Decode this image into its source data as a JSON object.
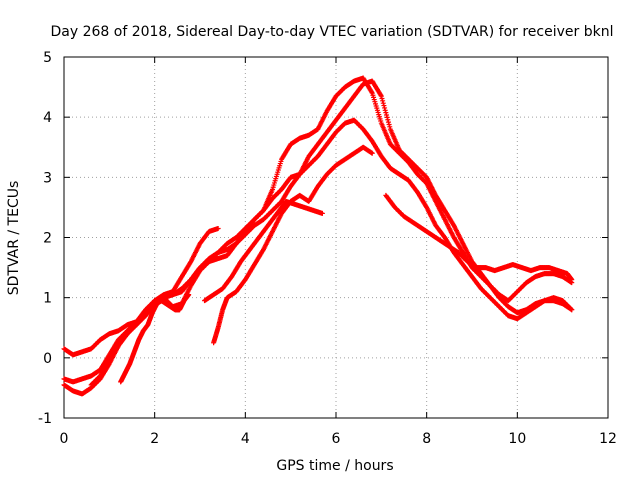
{
  "chart_data": {
    "type": "scatter",
    "title": "Day 268 of 2018, Sidereal Day-to-day VTEC variation (SDTVAR) for receiver bknl",
    "xlabel": "GPS time / hours",
    "ylabel": "SDTVAR / TECUs",
    "xlim": [
      0,
      12
    ],
    "ylim": [
      -1,
      5
    ],
    "xticks": [
      "0",
      "2",
      "4",
      "6",
      "8",
      "10",
      "12"
    ],
    "yticks": [
      "-1",
      "0",
      "1",
      "2",
      "3",
      "4",
      "5"
    ],
    "grid": true,
    "marker": "+",
    "color": "#ff0000",
    "series": [
      {
        "name": "trace-1",
        "x": [
          0.0,
          0.2,
          0.4,
          0.6,
          0.8,
          1.0,
          1.2,
          1.4,
          1.6,
          1.8,
          2.0,
          2.2,
          2.4,
          2.6,
          2.8,
          3.0,
          3.2,
          3.4
        ],
        "y": [
          0.15,
          0.05,
          0.1,
          0.15,
          0.3,
          0.4,
          0.45,
          0.55,
          0.6,
          0.75,
          0.95,
          1.05,
          1.1,
          1.35,
          1.6,
          1.9,
          2.1,
          2.15
        ]
      },
      {
        "name": "trace-2",
        "x": [
          0.0,
          0.2,
          0.4,
          0.6,
          0.8,
          1.0,
          1.2,
          1.4,
          1.6,
          1.8,
          2.0,
          2.2,
          2.4,
          2.6,
          2.8,
          3.0,
          3.2,
          3.4,
          3.6,
          3.8,
          4.0,
          4.2,
          4.4,
          4.6,
          4.8,
          5.0,
          5.2,
          5.4,
          5.6,
          5.8,
          6.0,
          6.2,
          6.4,
          6.6,
          6.8,
          7.0,
          7.2,
          7.4,
          7.6,
          7.8,
          8.0,
          8.2,
          8.4,
          8.6,
          8.8,
          9.0,
          9.2,
          9.4,
          9.6,
          9.8,
          10.0,
          10.2,
          10.4,
          10.6,
          10.8,
          11.0,
          11.2
        ],
        "y": [
          -0.35,
          -0.4,
          -0.35,
          -0.3,
          -0.2,
          0.05,
          0.3,
          0.45,
          0.55,
          0.7,
          0.9,
          1.0,
          1.05,
          1.1,
          1.3,
          1.5,
          1.65,
          1.75,
          1.8,
          1.9,
          2.1,
          2.3,
          2.45,
          2.8,
          3.3,
          3.55,
          3.65,
          3.7,
          3.8,
          4.1,
          4.35,
          4.5,
          4.6,
          4.65,
          4.4,
          3.9,
          3.55,
          3.4,
          3.25,
          3.05,
          2.9,
          2.6,
          2.3,
          2.0,
          1.75,
          1.5,
          1.35,
          1.2,
          1.05,
          0.95,
          1.1,
          1.25,
          1.35,
          1.4,
          1.4,
          1.35,
          1.25
        ]
      },
      {
        "name": "trace-3",
        "x": [
          0.0,
          0.2,
          0.4,
          0.6,
          0.8,
          1.0,
          1.2,
          1.4,
          1.6,
          1.8,
          2.0,
          2.2,
          2.4,
          2.6,
          2.8,
          3.0,
          3.2,
          3.4,
          3.6,
          3.8,
          4.0,
          4.2,
          4.4,
          4.6,
          4.8,
          5.0,
          5.2,
          5.4,
          5.6,
          5.8,
          6.0,
          6.2,
          6.4,
          6.6,
          6.8,
          7.0,
          7.2,
          7.4,
          7.6,
          7.8,
          8.0,
          8.2,
          8.4,
          8.6,
          8.8,
          9.0,
          9.2,
          9.4,
          9.6,
          9.8,
          10.0,
          10.2,
          10.4,
          10.6,
          10.8,
          11.0,
          11.2
        ],
        "y": [
          -0.45,
          -0.55,
          -0.6,
          -0.5,
          -0.35,
          -0.1,
          0.2,
          0.45,
          0.6,
          0.8,
          0.95,
          1.0,
          0.85,
          0.9,
          1.2,
          1.45,
          1.6,
          1.65,
          1.7,
          1.9,
          2.05,
          2.2,
          2.3,
          2.45,
          2.6,
          2.85,
          3.05,
          3.35,
          3.55,
          3.75,
          3.95,
          4.15,
          4.35,
          4.55,
          4.6,
          4.35,
          3.8,
          3.45,
          3.3,
          3.15,
          3.0,
          2.7,
          2.45,
          2.2,
          1.9,
          1.6,
          1.4,
          1.2,
          1.0,
          0.85,
          0.75,
          0.8,
          0.9,
          0.95,
          0.95,
          0.9,
          0.8
        ]
      },
      {
        "name": "trace-4",
        "x": [
          0.6,
          0.8,
          1.0,
          1.2,
          1.4,
          1.6,
          1.8,
          2.0,
          2.2,
          2.4,
          2.6,
          2.8,
          3.0,
          3.2,
          3.4,
          3.6,
          3.8,
          4.0,
          4.2,
          4.4,
          4.6,
          4.8,
          5.0,
          5.2,
          5.4,
          5.6,
          5.8,
          6.0,
          6.2,
          6.4,
          6.6,
          6.8,
          7.0,
          7.2,
          7.4,
          7.6,
          7.8,
          8.0,
          8.2,
          8.4,
          8.6,
          8.8,
          9.0,
          9.2,
          9.4,
          9.6,
          9.8,
          10.0,
          10.2,
          10.4,
          10.6,
          10.8,
          11.0,
          11.2
        ],
        "y": [
          -0.45,
          -0.3,
          -0.05,
          0.2,
          0.4,
          0.55,
          0.75,
          0.95,
          1.0,
          1.05,
          1.15,
          1.3,
          1.5,
          1.6,
          1.75,
          1.9,
          2.0,
          2.15,
          2.3,
          2.45,
          2.65,
          2.8,
          3.0,
          3.05,
          3.2,
          3.35,
          3.55,
          3.75,
          3.9,
          3.95,
          3.8,
          3.6,
          3.35,
          3.15,
          3.05,
          2.95,
          2.75,
          2.5,
          2.2,
          2.0,
          1.75,
          1.55,
          1.35,
          1.15,
          1.0,
          0.85,
          0.7,
          0.65,
          0.75,
          0.85,
          0.95,
          1.0,
          0.95,
          0.8
        ]
      },
      {
        "name": "trace-5",
        "x": [
          1.25,
          1.35,
          1.45,
          1.55,
          1.65,
          1.75,
          1.85,
          1.95,
          2.05,
          2.15,
          2.25,
          2.35,
          2.45,
          2.55,
          2.65,
          2.75
        ],
        "y": [
          -0.4,
          -0.25,
          -0.1,
          0.1,
          0.3,
          0.45,
          0.55,
          0.75,
          0.9,
          0.95,
          0.9,
          0.85,
          0.8,
          0.8,
          0.95,
          1.05
        ]
      },
      {
        "name": "trace-6",
        "x": [
          3.3,
          3.4,
          3.5,
          3.6,
          3.8,
          4.0,
          4.2,
          4.4,
          4.6,
          4.8,
          5.0,
          5.2,
          5.4,
          5.6,
          5.8,
          6.0,
          6.2,
          6.4,
          6.6,
          6.8
        ],
        "y": [
          0.25,
          0.5,
          0.8,
          1.0,
          1.1,
          1.3,
          1.55,
          1.8,
          2.1,
          2.4,
          2.6,
          2.7,
          2.6,
          2.85,
          3.05,
          3.2,
          3.3,
          3.4,
          3.5,
          3.4
        ]
      },
      {
        "name": "trace-7",
        "x": [
          3.1,
          3.3,
          3.5,
          3.7,
          3.9,
          4.1,
          4.3,
          4.5,
          4.7,
          4.9,
          5.1,
          5.3,
          5.5,
          5.7
        ],
        "y": [
          0.95,
          1.05,
          1.15,
          1.35,
          1.6,
          1.8,
          2.0,
          2.2,
          2.4,
          2.6,
          2.55,
          2.5,
          2.45,
          2.4
        ]
      },
      {
        "name": "trace-8",
        "x": [
          7.1,
          7.3,
          7.5,
          7.7,
          7.9,
          8.1,
          8.3,
          8.5,
          8.7,
          8.9,
          9.1,
          9.3,
          9.5,
          9.7,
          9.9,
          10.1,
          10.3,
          10.5,
          10.7,
          10.9,
          11.1,
          11.2
        ],
        "y": [
          2.7,
          2.5,
          2.35,
          2.25,
          2.15,
          2.05,
          1.95,
          1.85,
          1.75,
          1.6,
          1.5,
          1.5,
          1.45,
          1.5,
          1.55,
          1.5,
          1.45,
          1.5,
          1.5,
          1.45,
          1.4,
          1.3
        ]
      }
    ]
  }
}
